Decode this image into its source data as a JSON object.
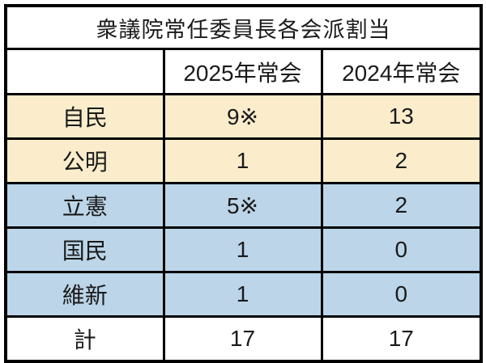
{
  "table": {
    "title": "衆議院常任委員長各会派割当",
    "columns": {
      "label": "",
      "y2025": "2025年常会",
      "y2024": "2024年常会"
    },
    "rows": [
      {
        "label": "自民",
        "y2025": "9※",
        "y2024": "13",
        "highlight": "cream"
      },
      {
        "label": "公明",
        "y2025": "1",
        "y2024": "2",
        "highlight": "cream"
      },
      {
        "label": "立憲",
        "y2025": "5※",
        "y2024": "2",
        "highlight": "blue"
      },
      {
        "label": "国民",
        "y2025": "1",
        "y2024": "0",
        "highlight": "blue"
      },
      {
        "label": "維新",
        "y2025": "1",
        "y2024": "0",
        "highlight": "blue"
      },
      {
        "label": "計",
        "y2025": "17",
        "y2024": "17",
        "highlight": "none"
      }
    ]
  },
  "colors": {
    "cream_row": "#fbedcb",
    "blue_row": "#bcd5e8",
    "border": "#000000",
    "background": "#ffffff",
    "text": "#1a1a1a"
  }
}
